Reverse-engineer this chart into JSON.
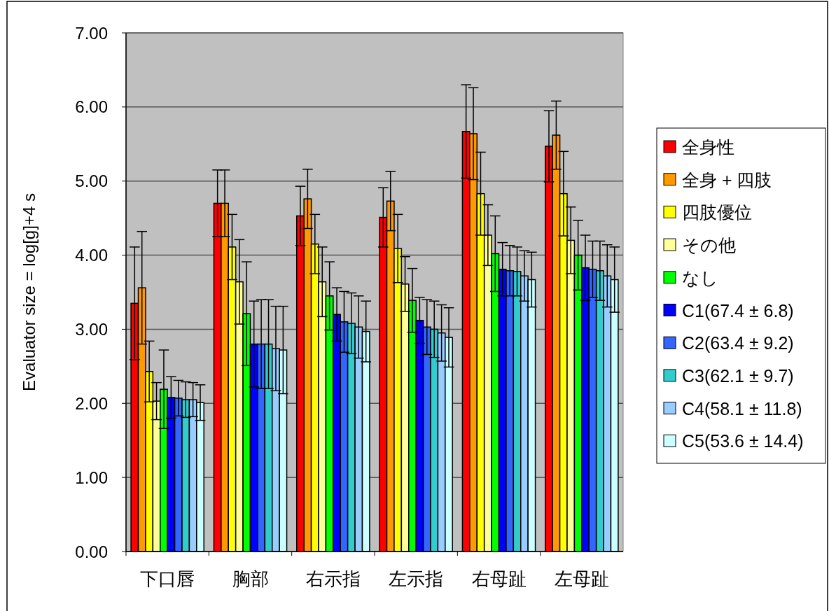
{
  "chart_data": {
    "type": "bar",
    "ylabel": "Evaluator size = log[g]+4  s",
    "categories": [
      "下口唇",
      "胸部",
      "右示指",
      "左示指",
      "右母趾",
      "左母趾"
    ],
    "ylim": [
      0,
      7
    ],
    "yticks": [
      {
        "value": 0,
        "label": "0.00"
      },
      {
        "value": 1,
        "label": "1.00"
      },
      {
        "value": 2,
        "label": "2.00"
      },
      {
        "value": 3,
        "label": "3.00"
      },
      {
        "value": 4,
        "label": "4.00"
      },
      {
        "value": 5,
        "label": "5.00"
      },
      {
        "value": 6,
        "label": "6.00"
      },
      {
        "value": 7,
        "label": "7.00"
      }
    ],
    "grid": "y",
    "legend": "right",
    "series": [
      {
        "name": "全身性",
        "color": "#ff0000",
        "values": [
          3.35,
          4.7,
          4.53,
          4.51,
          5.67,
          5.47
        ],
        "errors": [
          0.76,
          0.45,
          0.4,
          0.4,
          0.63,
          0.48
        ]
      },
      {
        "name": "全身 + 四肢",
        "color": "#ff9900",
        "values": [
          3.56,
          4.7,
          4.76,
          4.73,
          5.64,
          5.62
        ],
        "errors": [
          0.76,
          0.45,
          0.4,
          0.4,
          0.62,
          0.46
        ]
      },
      {
        "name": "四肢優位",
        "color": "#ffff00",
        "values": [
          2.43,
          4.11,
          4.15,
          4.09,
          4.83,
          4.83
        ],
        "errors": [
          0.41,
          0.44,
          0.4,
          0.46,
          0.56,
          0.57
        ]
      },
      {
        "name": "その他",
        "color": "#ffff99",
        "values": [
          2.03,
          3.64,
          3.64,
          3.61,
          4.27,
          4.2
        ],
        "errors": [
          0.25,
          0.57,
          0.47,
          0.37,
          0.41,
          0.45
        ]
      },
      {
        "name": "なし",
        "color": "#00ff00",
        "values": [
          2.19,
          3.21,
          3.45,
          3.39,
          4.02,
          4.0
        ],
        "errors": [
          0.53,
          0.7,
          0.46,
          0.43,
          0.51,
          0.47
        ]
      },
      {
        "name": "C1(67.4 ± 6.8)",
        "color": "#0000ff",
        "values": [
          2.08,
          2.8,
          3.2,
          3.12,
          3.81,
          3.83
        ],
        "errors": [
          0.28,
          0.58,
          0.36,
          0.31,
          0.36,
          0.44
        ]
      },
      {
        "name": "C2(63.4 ± 9.2)",
        "color": "#3366ff",
        "values": [
          2.07,
          2.8,
          3.1,
          3.03,
          3.79,
          3.81
        ],
        "errors": [
          0.24,
          0.6,
          0.41,
          0.37,
          0.34,
          0.38
        ]
      },
      {
        "name": "C3(62.1 ± 9.7)",
        "color": "#33cccc",
        "values": [
          2.05,
          2.8,
          3.08,
          3.0,
          3.78,
          3.79
        ],
        "errors": [
          0.24,
          0.6,
          0.41,
          0.38,
          0.33,
          0.4
        ]
      },
      {
        "name": "C4(58.1 ± 11.8)",
        "color": "#99ccff",
        "values": [
          2.05,
          2.74,
          3.03,
          2.95,
          3.72,
          3.72
        ],
        "errors": [
          0.23,
          0.57,
          0.42,
          0.38,
          0.34,
          0.42
        ]
      },
      {
        "name": "C5(53.6 ± 14.4)",
        "color": "#ccffff",
        "values": [
          2.01,
          2.72,
          2.97,
          2.89,
          3.67,
          3.67
        ],
        "errors": [
          0.24,
          0.59,
          0.41,
          0.4,
          0.37,
          0.44
        ]
      }
    ]
  }
}
